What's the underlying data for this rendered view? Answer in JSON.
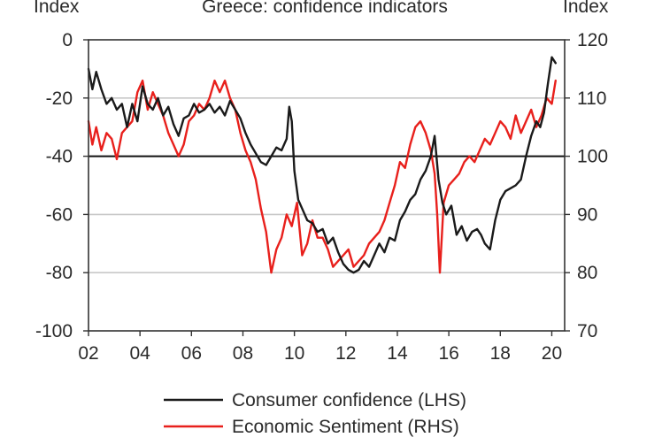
{
  "chart_data": {
    "type": "line",
    "title": "Greece: confidence indicators",
    "left_axis_label": "Index",
    "right_axis_label": "Index",
    "x_ticks": [
      "02",
      "04",
      "06",
      "08",
      "10",
      "12",
      "14",
      "16",
      "18",
      "20"
    ],
    "xlim": [
      2002,
      2020.5
    ],
    "left_ylim": [
      -100,
      0
    ],
    "left_ticks": [
      "0",
      "-20",
      "-40",
      "-60",
      "-80",
      "-100"
    ],
    "right_ylim": [
      70,
      120
    ],
    "right_ticks": [
      "120",
      "110",
      "100",
      "90",
      "80",
      "70"
    ],
    "reference_line_left": -40,
    "grid": true,
    "legend_position": "bottom",
    "colors": {
      "consumer": "#1a1a1a",
      "sentiment": "#e8201c"
    },
    "series": [
      {
        "name": "Consumer confidence (LHS)",
        "axis": "left",
        "x": [
          2002.0,
          2002.15,
          2002.3,
          2002.5,
          2002.7,
          2002.9,
          2003.1,
          2003.3,
          2003.5,
          2003.7,
          2003.9,
          2004.1,
          2004.3,
          2004.5,
          2004.7,
          2004.9,
          2005.1,
          2005.3,
          2005.5,
          2005.7,
          2005.9,
          2006.1,
          2006.3,
          2006.5,
          2006.7,
          2006.9,
          2007.1,
          2007.3,
          2007.5,
          2007.7,
          2007.9,
          2008.1,
          2008.3,
          2008.5,
          2008.7,
          2008.9,
          2009.1,
          2009.3,
          2009.5,
          2009.7,
          2009.8,
          2009.9,
          2010.0,
          2010.15,
          2010.3,
          2010.5,
          2010.7,
          2010.9,
          2011.1,
          2011.3,
          2011.5,
          2011.7,
          2011.9,
          2012.1,
          2012.3,
          2012.5,
          2012.7,
          2012.9,
          2013.1,
          2013.3,
          2013.5,
          2013.7,
          2013.9,
          2014.1,
          2014.3,
          2014.5,
          2014.7,
          2014.9,
          2015.1,
          2015.3,
          2015.45,
          2015.6,
          2015.75,
          2015.9,
          2016.1,
          2016.3,
          2016.5,
          2016.7,
          2016.9,
          2017.1,
          2017.25,
          2017.4,
          2017.6,
          2017.8,
          2018.0,
          2018.2,
          2018.4,
          2018.6,
          2018.8,
          2019.0,
          2019.2,
          2019.4,
          2019.55,
          2019.7,
          2019.85,
          2020.0,
          2020.15
        ],
        "values": [
          -10,
          -17,
          -11,
          -17,
          -22,
          -20,
          -24,
          -22,
          -30,
          -22,
          -28,
          -16,
          -22,
          -24,
          -20,
          -26,
          -23,
          -29,
          -33,
          -27,
          -26,
          -22,
          -25,
          -24,
          -22,
          -25,
          -23,
          -26,
          -21,
          -24,
          -27,
          -32,
          -36,
          -39,
          -42,
          -43,
          -40,
          -37,
          -38,
          -34,
          -23,
          -28,
          -45,
          -55,
          -58,
          -62,
          -63,
          -66,
          -65,
          -70,
          -68,
          -73,
          -77,
          -79,
          -80,
          -79,
          -76,
          -78,
          -74,
          -70,
          -73,
          -68,
          -69,
          -62,
          -59,
          -55,
          -53,
          -48,
          -45,
          -40,
          -33,
          -48,
          -56,
          -60,
          -57,
          -67,
          -64,
          -69,
          -66,
          -65,
          -67,
          -70,
          -72,
          -62,
          -55,
          -52,
          -51,
          -50,
          -48,
          -40,
          -33,
          -28,
          -30,
          -25,
          -15,
          -6,
          -8
        ]
      },
      {
        "name": "Economic Sentiment (RHS)",
        "axis": "right",
        "x": [
          2002.0,
          2002.15,
          2002.3,
          2002.5,
          2002.7,
          2002.9,
          2003.1,
          2003.3,
          2003.5,
          2003.7,
          2003.9,
          2004.1,
          2004.3,
          2004.5,
          2004.7,
          2004.9,
          2005.1,
          2005.3,
          2005.5,
          2005.7,
          2005.9,
          2006.1,
          2006.3,
          2006.5,
          2006.7,
          2006.9,
          2007.1,
          2007.3,
          2007.5,
          2007.7,
          2007.9,
          2008.1,
          2008.3,
          2008.5,
          2008.7,
          2008.9,
          2009.1,
          2009.3,
          2009.5,
          2009.7,
          2009.9,
          2010.1,
          2010.3,
          2010.5,
          2010.7,
          2010.9,
          2011.1,
          2011.3,
          2011.5,
          2011.7,
          2011.9,
          2012.1,
          2012.3,
          2012.5,
          2012.7,
          2012.9,
          2013.1,
          2013.3,
          2013.5,
          2013.7,
          2013.9,
          2014.1,
          2014.3,
          2014.5,
          2014.7,
          2014.9,
          2015.1,
          2015.3,
          2015.45,
          2015.55,
          2015.65,
          2015.8,
          2016.0,
          2016.2,
          2016.4,
          2016.6,
          2016.8,
          2017.0,
          2017.2,
          2017.4,
          2017.6,
          2017.8,
          2018.0,
          2018.2,
          2018.4,
          2018.6,
          2018.8,
          2019.0,
          2019.2,
          2019.4,
          2019.6,
          2019.8,
          2020.0,
          2020.15
        ],
        "values": [
          106,
          102,
          105,
          101,
          104,
          103,
          99.5,
          104,
          105,
          106,
          111,
          113,
          108,
          111,
          109,
          107,
          104,
          102,
          100,
          102,
          106,
          107,
          109,
          108,
          110,
          113,
          111,
          113,
          110,
          108,
          104,
          101,
          99,
          96,
          91,
          87,
          80,
          84,
          86,
          90,
          88,
          92,
          83,
          85,
          89,
          86,
          86,
          84,
          81,
          82,
          83,
          84,
          81,
          82,
          83,
          85,
          86,
          87,
          89,
          92,
          95,
          99,
          98,
          102,
          105,
          106,
          104,
          101,
          97,
          90,
          80,
          92,
          95,
          96,
          97,
          99,
          100,
          99,
          101,
          103,
          102,
          104,
          106,
          105,
          103,
          107,
          104,
          106,
          108,
          105,
          107,
          110,
          109,
          113
        ]
      }
    ]
  },
  "legend": {
    "consumer_label": "Consumer confidence (LHS)",
    "sentiment_label": "Economic Sentiment (RHS)"
  }
}
